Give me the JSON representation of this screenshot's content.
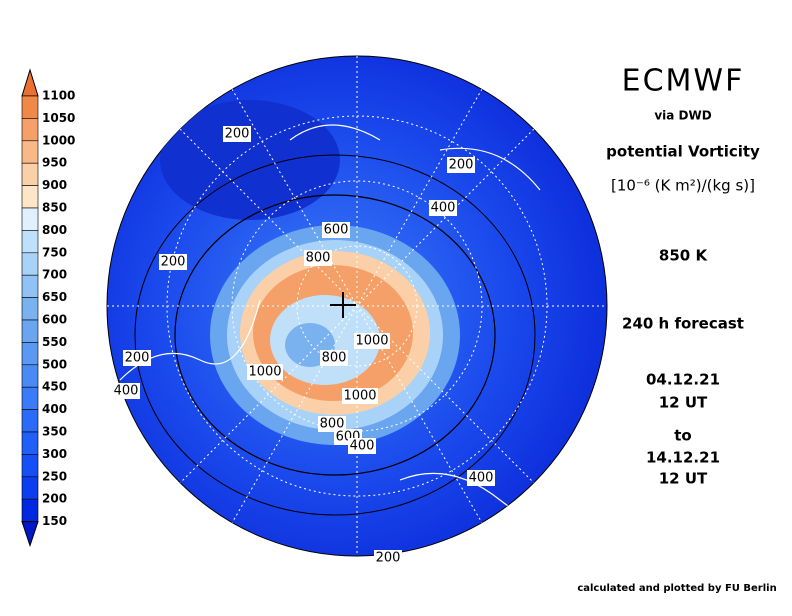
{
  "header": {
    "title": "ECMWF",
    "source": "via DWD",
    "quantity": "potential Vorticity",
    "units": "[10⁻⁶ (K m²)/(kg s)]",
    "level": "850 K",
    "forecast": "240 h forecast",
    "start_date": "04.12.21",
    "start_time": "12 UT",
    "separator": "to",
    "end_date": "14.12.21",
    "end_time": "12 UT"
  },
  "footer": "calculated and plotted by FU Berlin",
  "colorbar": {
    "levels": [
      1100,
      1050,
      1000,
      950,
      900,
      850,
      800,
      750,
      700,
      650,
      600,
      550,
      500,
      450,
      400,
      350,
      300,
      250,
      200,
      150
    ],
    "colors": [
      "#ec7030",
      "#f08848",
      "#f5a068",
      "#f8b888",
      "#fbd0a8",
      "#fde6c8",
      "#e0f0fc",
      "#c0e0fa",
      "#a8d2f8",
      "#90c2f5",
      "#7ab2f0",
      "#6aa5f0",
      "#5a98f2",
      "#4a8af5",
      "#3a7cf8",
      "#2a6cf8",
      "#2060f8",
      "#1450f5",
      "#0a3ef0",
      "#0028e0",
      "#0018c8"
    ]
  },
  "contour_labels": [
    "200",
    "200",
    "400",
    "600",
    "200",
    "800",
    "1000",
    "800",
    "200",
    "1000",
    "400",
    "1000",
    "800",
    "600",
    "400",
    "400",
    "200"
  ]
}
